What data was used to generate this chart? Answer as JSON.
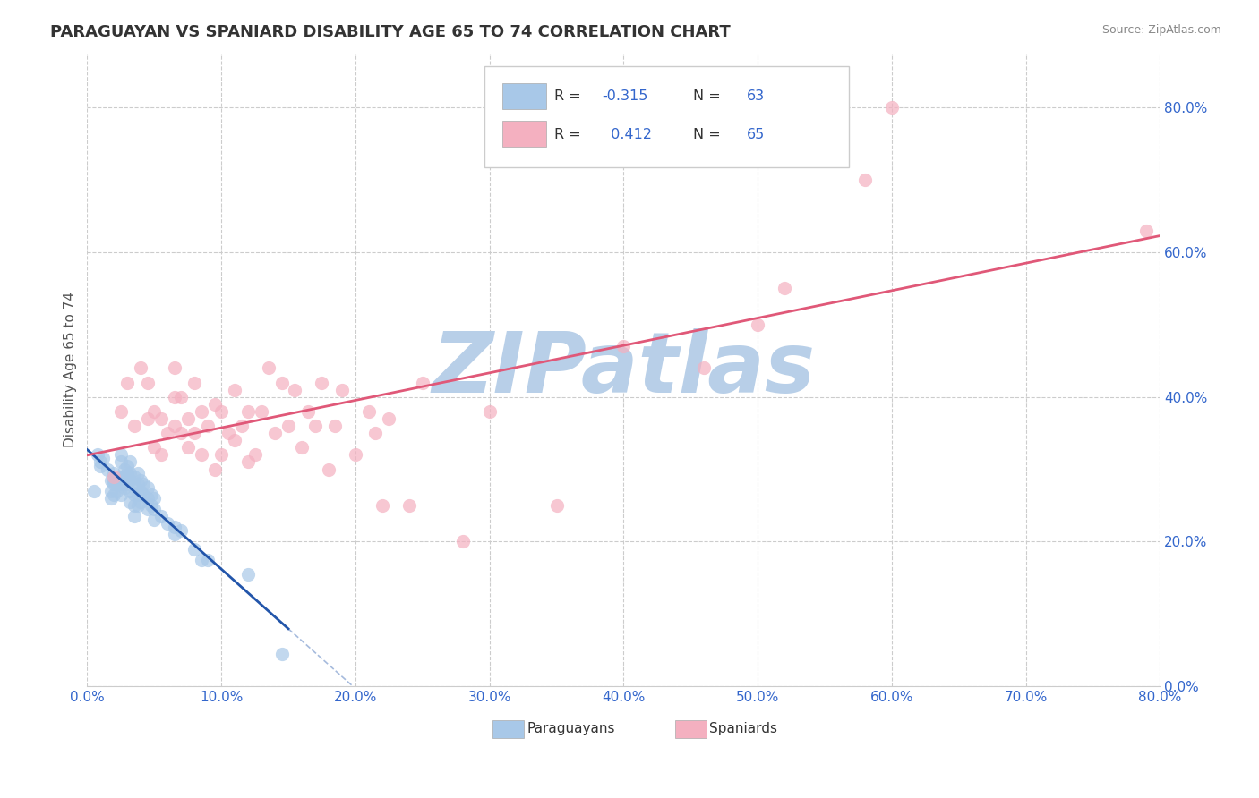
{
  "title": "PARAGUAYAN VS SPANIARD DISABILITY AGE 65 TO 74 CORRELATION CHART",
  "source": "Source: ZipAtlas.com",
  "xlim": [
    0.0,
    0.8
  ],
  "ylim": [
    0.0,
    0.875
  ],
  "R_paraguayan": -0.315,
  "N_paraguayan": 63,
  "R_spaniard": 0.412,
  "N_spaniard": 65,
  "paraguayan_color": "#a8c8e8",
  "spaniard_color": "#f4b0c0",
  "line_paraguayan": "#2255aa",
  "line_spaniard": "#e05878",
  "watermark": "ZIPatlas",
  "watermark_color": "#b8cfe8",
  "legend_color": "#3366cc",
  "tick_color": "#3366cc",
  "paraguayan_scatter_x": [
    0.005,
    0.008,
    0.01,
    0.01,
    0.012,
    0.015,
    0.018,
    0.018,
    0.018,
    0.02,
    0.02,
    0.02,
    0.02,
    0.022,
    0.022,
    0.025,
    0.025,
    0.025,
    0.025,
    0.025,
    0.028,
    0.028,
    0.028,
    0.03,
    0.03,
    0.03,
    0.032,
    0.032,
    0.032,
    0.032,
    0.032,
    0.035,
    0.035,
    0.035,
    0.035,
    0.035,
    0.038,
    0.038,
    0.038,
    0.038,
    0.04,
    0.04,
    0.04,
    0.042,
    0.042,
    0.045,
    0.045,
    0.045,
    0.048,
    0.048,
    0.05,
    0.05,
    0.05,
    0.055,
    0.06,
    0.065,
    0.065,
    0.07,
    0.08,
    0.085,
    0.09,
    0.12,
    0.145
  ],
  "paraguayan_scatter_y": [
    0.27,
    0.32,
    0.31,
    0.305,
    0.315,
    0.3,
    0.285,
    0.27,
    0.26,
    0.295,
    0.285,
    0.28,
    0.265,
    0.285,
    0.27,
    0.32,
    0.31,
    0.29,
    0.28,
    0.265,
    0.3,
    0.29,
    0.275,
    0.305,
    0.295,
    0.28,
    0.31,
    0.295,
    0.285,
    0.27,
    0.255,
    0.29,
    0.28,
    0.265,
    0.25,
    0.235,
    0.295,
    0.28,
    0.265,
    0.25,
    0.285,
    0.27,
    0.255,
    0.28,
    0.265,
    0.275,
    0.26,
    0.245,
    0.265,
    0.25,
    0.26,
    0.245,
    0.23,
    0.235,
    0.225,
    0.22,
    0.21,
    0.215,
    0.19,
    0.175,
    0.175,
    0.155,
    0.045
  ],
  "spaniard_scatter_x": [
    0.02,
    0.025,
    0.03,
    0.035,
    0.04,
    0.045,
    0.045,
    0.05,
    0.05,
    0.055,
    0.055,
    0.06,
    0.065,
    0.065,
    0.065,
    0.07,
    0.07,
    0.075,
    0.075,
    0.08,
    0.08,
    0.085,
    0.085,
    0.09,
    0.095,
    0.095,
    0.1,
    0.1,
    0.105,
    0.11,
    0.11,
    0.115,
    0.12,
    0.12,
    0.125,
    0.13,
    0.135,
    0.14,
    0.145,
    0.15,
    0.155,
    0.16,
    0.165,
    0.17,
    0.175,
    0.18,
    0.185,
    0.19,
    0.2,
    0.21,
    0.215,
    0.22,
    0.225,
    0.24,
    0.25,
    0.28,
    0.3,
    0.35,
    0.4,
    0.46,
    0.5,
    0.52,
    0.58,
    0.6,
    0.79
  ],
  "spaniard_scatter_y": [
    0.29,
    0.38,
    0.42,
    0.36,
    0.44,
    0.37,
    0.42,
    0.33,
    0.38,
    0.32,
    0.37,
    0.35,
    0.4,
    0.44,
    0.36,
    0.35,
    0.4,
    0.33,
    0.37,
    0.35,
    0.42,
    0.32,
    0.38,
    0.36,
    0.3,
    0.39,
    0.32,
    0.38,
    0.35,
    0.34,
    0.41,
    0.36,
    0.31,
    0.38,
    0.32,
    0.38,
    0.44,
    0.35,
    0.42,
    0.36,
    0.41,
    0.33,
    0.38,
    0.36,
    0.42,
    0.3,
    0.36,
    0.41,
    0.32,
    0.38,
    0.35,
    0.25,
    0.37,
    0.25,
    0.42,
    0.2,
    0.38,
    0.25,
    0.47,
    0.44,
    0.5,
    0.55,
    0.7,
    0.8,
    0.63
  ]
}
